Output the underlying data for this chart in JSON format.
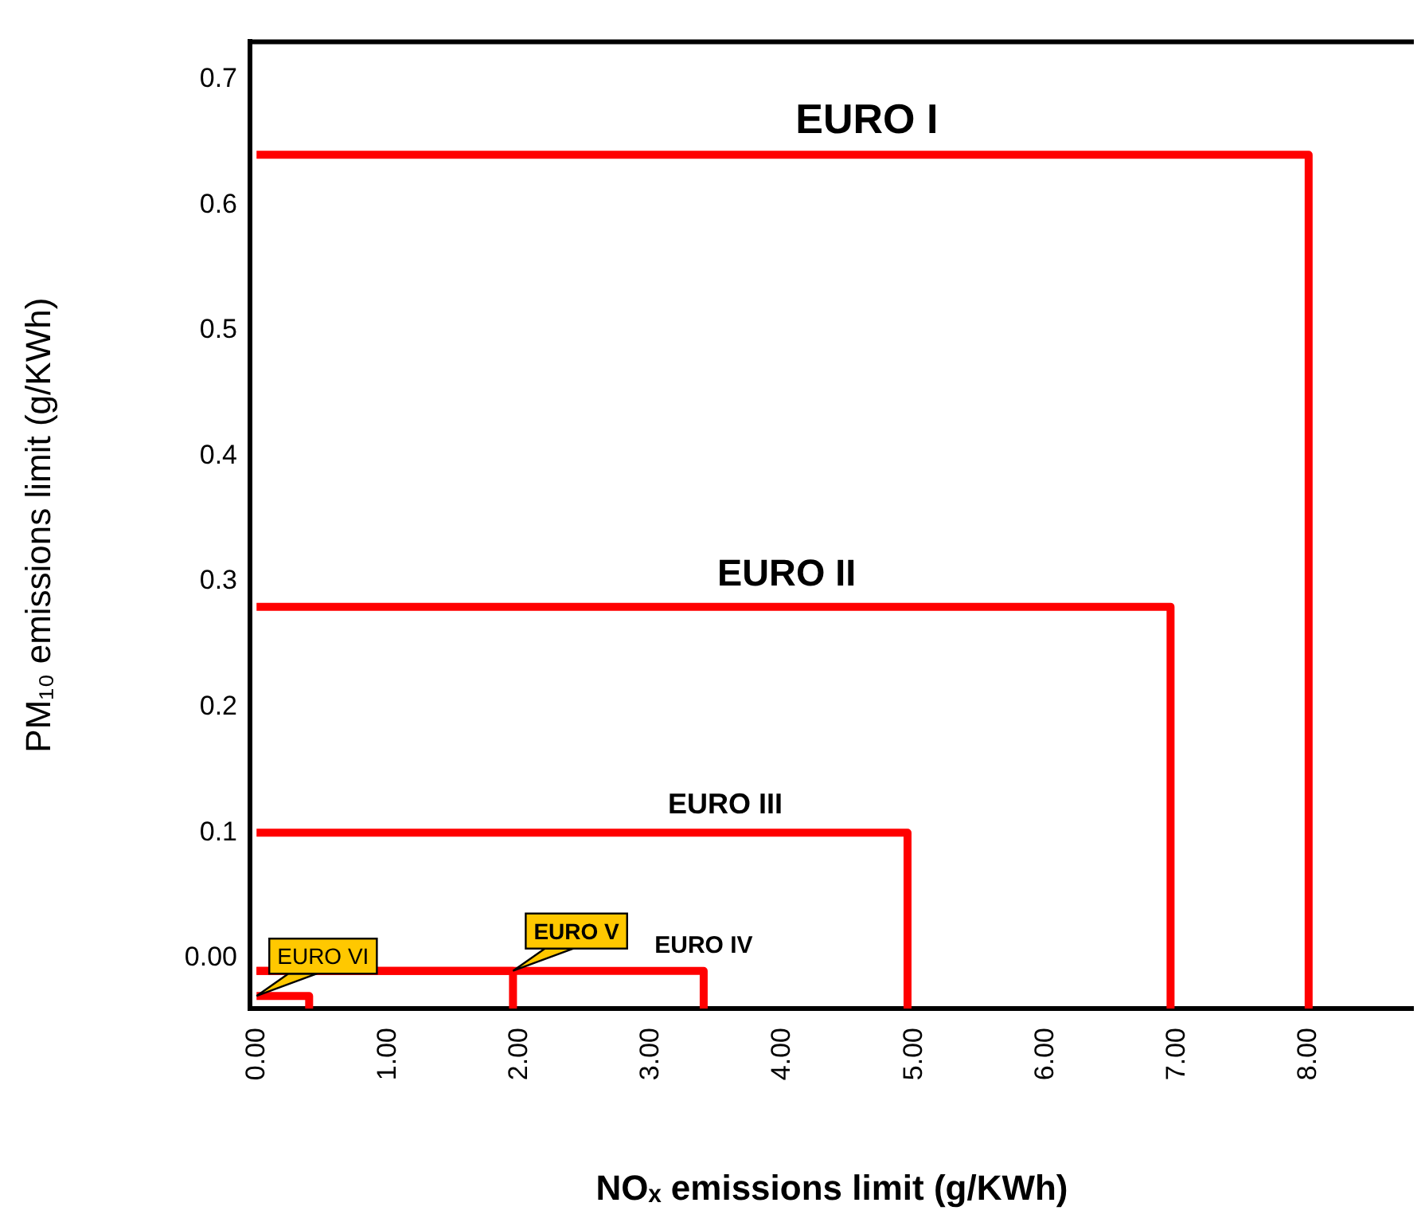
{
  "chart_data": {
    "type": "line",
    "xlabel": "NOₓ emissions limit (g/KWh)",
    "ylabel": "PM₁₀ emissions limit (g/KWh)",
    "series": [
      {
        "name": "EURO I",
        "color": "#ff0000",
        "x": [
          0,
          8.0,
          8.0
        ],
        "values": [
          0.64,
          0.64,
          -0.04
        ]
      },
      {
        "name": "EURO II",
        "color": "#ff0000",
        "x": [
          0,
          6.95,
          6.95
        ],
        "values": [
          0.28,
          0.28,
          -0.04
        ]
      },
      {
        "name": "EURO III",
        "color": "#ff0000",
        "x": [
          0,
          4.95,
          4.95
        ],
        "values": [
          0.1,
          0.1,
          -0.04
        ]
      },
      {
        "name": "EURO IV",
        "color": "#ff0000",
        "x": [
          0,
          3.4,
          3.4
        ],
        "values": [
          -0.01,
          -0.01,
          -0.04
        ]
      },
      {
        "name": "EURO V",
        "color": "#ff0000",
        "x": [
          0,
          1.95,
          1.95
        ],
        "values": [
          -0.01,
          -0.01,
          -0.04
        ]
      },
      {
        "name": "EURO VI",
        "color": "#ff0000",
        "x": [
          0,
          0.4,
          0.4
        ],
        "values": [
          -0.03,
          -0.03,
          -0.04
        ]
      }
    ],
    "xlim": [
      -0.05,
      8.8
    ],
    "xticks": [
      {
        "value": 0,
        "label": "0.00"
      },
      {
        "value": 1,
        "label": "1.00"
      },
      {
        "value": 2,
        "label": "2.00"
      },
      {
        "value": 3,
        "label": "3.00"
      },
      {
        "value": 4,
        "label": "4.00"
      },
      {
        "value": 5,
        "label": "5.00"
      },
      {
        "value": 6,
        "label": "6.00"
      },
      {
        "value": 7,
        "label": "7.00"
      },
      {
        "value": 8,
        "label": "8.00"
      }
    ],
    "ylim": [
      -0.04,
      0.73
    ],
    "yticks": [
      {
        "value": 0,
        "label": "0.00"
      },
      0.1,
      0.2,
      0.3,
      0.4,
      0.5,
      0.6,
      0.7
    ],
    "grid": false,
    "legend": false,
    "marker": "none",
    "line_style": "solid"
  }
}
